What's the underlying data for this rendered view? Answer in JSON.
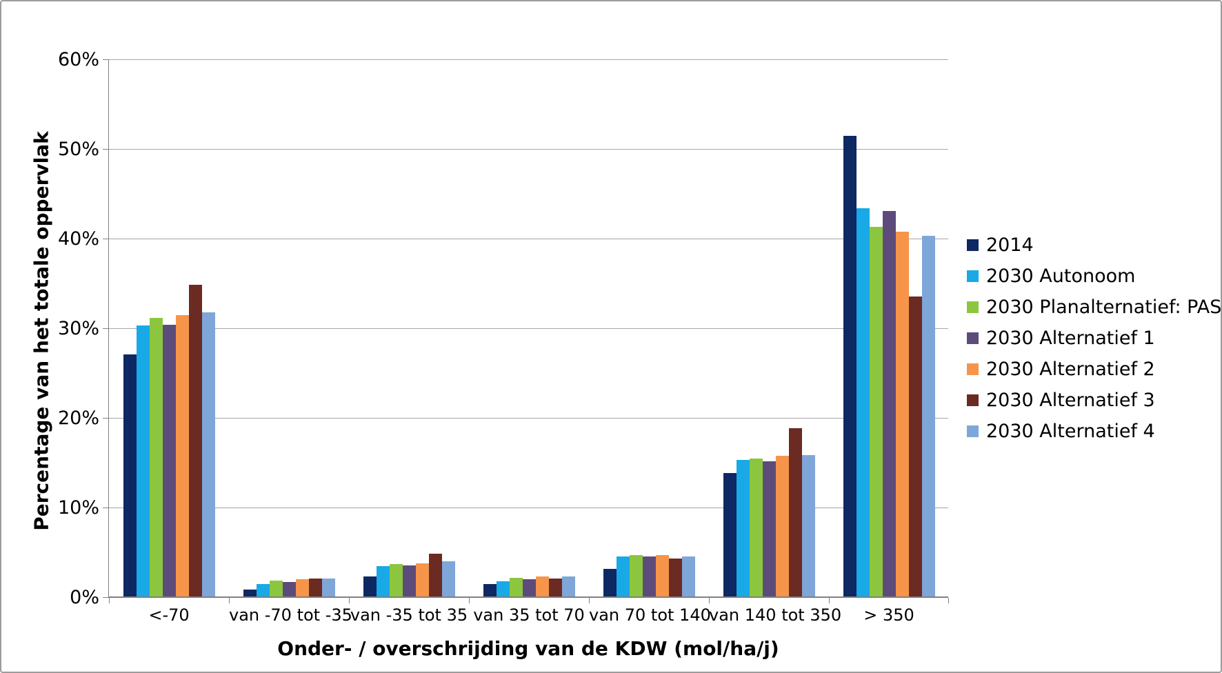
{
  "chart_data": {
    "type": "bar",
    "title": "",
    "xlabel": "Onder- / overschrijding van de KDW (mol/ha/j)",
    "ylabel": "Percentage van het totale oppervlak",
    "ylim": [
      0,
      60
    ],
    "ytick_step": 10,
    "ytick_suffix": "%",
    "grid": true,
    "legend_position": "right",
    "categories": [
      "<-70",
      "van -70 tot -35",
      "van -35 tot 35",
      "van 35 tot 70",
      "van 70 tot 140",
      "van 140 tot 350",
      "> 350"
    ],
    "series": [
      {
        "name": "2014",
        "color": "#0d2862",
        "values": [
          27.0,
          0.8,
          2.2,
          1.4,
          3.1,
          13.8,
          51.4
        ]
      },
      {
        "name": "2030 Autonoom",
        "color": "#18a9e6",
        "values": [
          30.2,
          1.4,
          3.4,
          1.7,
          4.5,
          15.2,
          43.3
        ]
      },
      {
        "name": "2030 Planalternatief: PAS",
        "color": "#8cc63f",
        "values": [
          31.1,
          1.8,
          3.6,
          2.1,
          4.6,
          15.4,
          41.2
        ]
      },
      {
        "name": "2030 Alternatief 1",
        "color": "#5d4b7c",
        "values": [
          30.3,
          1.6,
          3.5,
          1.9,
          4.5,
          15.1,
          43.0
        ]
      },
      {
        "name": "2030 Alternatief 2",
        "color": "#f6954a",
        "values": [
          31.4,
          1.9,
          3.7,
          2.2,
          4.6,
          15.7,
          40.7
        ]
      },
      {
        "name": "2030 Alternatief 3",
        "color": "#6b2a22",
        "values": [
          34.8,
          2.0,
          4.8,
          2.0,
          4.2,
          18.8,
          33.5
        ]
      },
      {
        "name": "2030 Alternatief 4",
        "color": "#7fa6d8",
        "values": [
          31.7,
          2.0,
          3.9,
          2.2,
          4.5,
          15.8,
          40.2
        ]
      }
    ],
    "colors": {
      "gridline": "#a6a6a6",
      "axis": "#808080",
      "canvas_border": "#9c9c9c",
      "background": "#ffffff",
      "text": "#000000"
    }
  }
}
